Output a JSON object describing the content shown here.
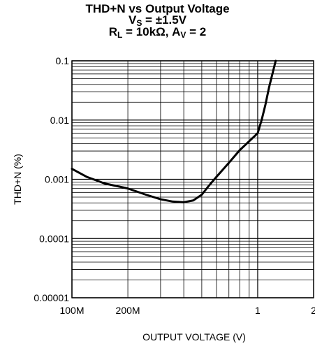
{
  "chart_data": {
    "type": "line",
    "title": {
      "line1": "THD+N vs Output Voltage",
      "line2_main": "V",
      "line2_sub": "S",
      "line2_rest": " = ±1.5V",
      "line3_main1": "R",
      "line3_sub1": "L",
      "line3_rest1": " = 10kΩ, A",
      "line3_sub2": "V",
      "line3_rest2": " = 2"
    },
    "xlabel": "OUTPUT VOLTAGE (V)",
    "ylabel": "THD+N (%)",
    "x_scale": "log",
    "y_scale": "log",
    "xlim": [
      0.1,
      2
    ],
    "ylim": [
      1e-05,
      0.1
    ],
    "grid": true,
    "x_ticks": [
      {
        "value": 0.1,
        "label": "100M"
      },
      {
        "value": 0.2,
        "label": "200M"
      },
      {
        "value": 1,
        "label": "1"
      },
      {
        "value": 2,
        "label": "2"
      }
    ],
    "y_ticks": [
      {
        "value": 0.1,
        "label": "0.1"
      },
      {
        "value": 0.01,
        "label": "0.01"
      },
      {
        "value": 0.001,
        "label": "0.001"
      },
      {
        "value": 0.0001,
        "label": "0.0001"
      },
      {
        "value": 1e-05,
        "label": "0.00001"
      }
    ],
    "series": [
      {
        "color": "#000000",
        "x": [
          0.1,
          0.12,
          0.15,
          0.2,
          0.25,
          0.3,
          0.35,
          0.4,
          0.45,
          0.5,
          0.55,
          0.6,
          0.7,
          0.8,
          1.0,
          1.05,
          1.1,
          1.15,
          1.2,
          1.25
        ],
        "y": [
          0.0015,
          0.0011,
          0.00085,
          0.0007,
          0.00055,
          0.00046,
          0.00042,
          0.00041,
          0.00044,
          0.00055,
          0.0008,
          0.0011,
          0.0019,
          0.0031,
          0.006,
          0.01,
          0.018,
          0.035,
          0.06,
          0.1
        ]
      }
    ]
  }
}
